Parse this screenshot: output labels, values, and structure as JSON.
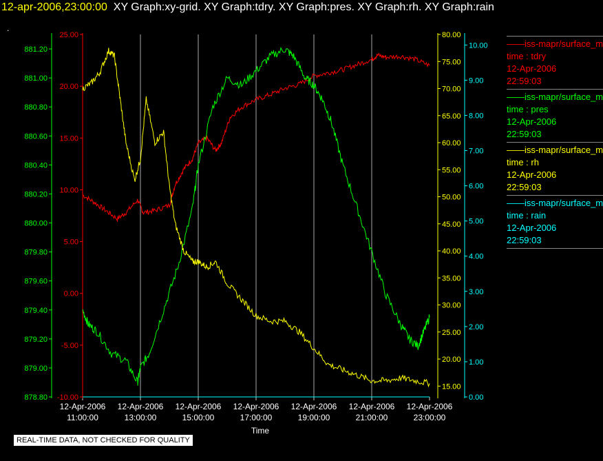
{
  "header": {
    "date": "12-apr-2006,23:00:00",
    "graphs": "XY Graph:xy-grid.  XY Graph:tdry.  XY Graph:pres.  XY Graph:rh.  XY Graph:rain"
  },
  "dot": ".",
  "note": "REAL-TIME DATA, NOT CHECKED FOR QUALITY",
  "legend": [
    {
      "name": "——iss-mapr/surface_m",
      "axes": "time : tdry",
      "date": "12-Apr-2006",
      "time": "22:59:03",
      "color": "#ff0000"
    },
    {
      "name": "——iss-mapr/surface_m",
      "axes": "time : pres",
      "date": "12-Apr-2006",
      "time": "22:59:03",
      "color": "#00ff00"
    },
    {
      "name": "——iss-mapr/surface_m",
      "axes": "time : rh",
      "date": "12-Apr-2006",
      "time": "22:59:03",
      "color": "#ffff00"
    },
    {
      "name": "——iss-mapr/surface_m",
      "axes": "time : rain",
      "date": "12-Apr-2006",
      "time": "22:59:03",
      "color": "#00ffff"
    }
  ],
  "chart_data": {
    "type": "line",
    "xlabel": "Time",
    "xlim": [
      11,
      23
    ],
    "x_ticks": [
      {
        "value": 11,
        "label1": "12-Apr-2006",
        "label2": "11:00:00"
      },
      {
        "value": 13,
        "label1": "12-Apr-2006",
        "label2": "13:00:00"
      },
      {
        "value": 15,
        "label1": "12-Apr-2006",
        "label2": "15:00:00"
      },
      {
        "value": 17,
        "label1": "12-Apr-2006",
        "label2": "17:00:00"
      },
      {
        "value": 19,
        "label1": "12-Apr-2006",
        "label2": "19:00:00"
      },
      {
        "value": 21,
        "label1": "12-Apr-2006",
        "label2": "21:00:00"
      },
      {
        "value": 23,
        "label1": "12-Apr-2006",
        "label2": "23:00:00"
      }
    ],
    "grid": "vertical",
    "axes": {
      "pres": {
        "color": "#00ff00",
        "side": "left-outer",
        "ylim": [
          878.8,
          881.3
        ],
        "ticks": [
          "878.80",
          "879.00",
          "879.20",
          "879.40",
          "879.60",
          "879.80",
          "880.00",
          "880.20",
          "880.40",
          "880.60",
          "880.80",
          "881.00",
          "881.20"
        ]
      },
      "tdry": {
        "color": "#ff0000",
        "side": "left-inner",
        "ylim": [
          -10,
          25
        ],
        "ticks": [
          "-10.00",
          "-5.00",
          "0.00",
          "5.00",
          "10.00",
          "15.00",
          "20.00",
          "25.00"
        ]
      },
      "rh": {
        "color": "#ffff00",
        "side": "right-inner",
        "ylim": [
          13,
          80
        ],
        "ticks": [
          "15.00",
          "20.00",
          "25.00",
          "30.00",
          "35.00",
          "40.00",
          "45.00",
          "50.00",
          "55.00",
          "60.00",
          "65.00",
          "70.00",
          "75.00",
          "80.00"
        ]
      },
      "rain": {
        "color": "#00ffff",
        "side": "right-outer",
        "ylim": [
          0,
          10.3
        ],
        "ticks": [
          "0.00",
          "1.00",
          "2.00",
          "3.00",
          "4.00",
          "5.00",
          "6.00",
          "7.00",
          "8.00",
          "9.00",
          "10.00"
        ]
      }
    },
    "series": [
      {
        "axis": "tdry",
        "color": "#ff0000",
        "x": [
          11.0,
          11.4,
          11.8,
          12.2,
          12.5,
          12.9,
          13.1,
          13.5,
          14.0,
          14.2,
          14.5,
          14.8,
          15.0,
          15.3,
          15.6,
          15.8,
          16.1,
          16.5,
          17.0,
          17.5,
          18.0,
          18.5,
          19.0,
          19.5,
          20.0,
          20.5,
          21.0,
          21.2,
          21.5,
          22.0,
          22.5,
          23.0
        ],
        "y": [
          9.5,
          8.8,
          8.0,
          7.2,
          7.8,
          9.0,
          7.8,
          8.0,
          8.5,
          10.5,
          12.0,
          13.0,
          14.5,
          15.0,
          13.8,
          14.5,
          17.0,
          18.0,
          18.7,
          19.2,
          19.8,
          20.2,
          21.0,
          21.3,
          21.6,
          22.1,
          22.6,
          23.0,
          22.8,
          22.9,
          22.6,
          22.0
        ]
      },
      {
        "axis": "pres",
        "color": "#00ff00",
        "x": [
          11.0,
          11.2,
          11.5,
          12.0,
          12.5,
          12.9,
          13.0,
          13.3,
          13.8,
          14.3,
          14.8,
          15.0,
          15.5,
          16.0,
          16.5,
          17.0,
          17.5,
          18.0,
          18.3,
          18.7,
          19.0,
          19.3,
          19.6,
          20.0,
          20.5,
          21.0,
          21.5,
          22.0,
          22.3,
          22.6,
          22.8,
          23.0
        ],
        "y": [
          879.4,
          879.3,
          879.25,
          879.1,
          879.05,
          878.9,
          879.0,
          879.1,
          879.4,
          879.7,
          880.1,
          880.4,
          880.8,
          881.0,
          880.95,
          881.05,
          881.15,
          881.2,
          881.15,
          881.0,
          880.95,
          880.85,
          880.7,
          880.4,
          880.1,
          879.8,
          879.5,
          879.3,
          879.2,
          879.15,
          879.25,
          879.35
        ]
      },
      {
        "axis": "rh",
        "color": "#ffff00",
        "x": [
          11.0,
          11.3,
          11.6,
          11.9,
          12.1,
          12.3,
          12.5,
          12.8,
          13.0,
          13.2,
          13.5,
          13.8,
          14.0,
          14.2,
          14.5,
          14.8,
          15.0,
          15.3,
          15.6,
          16.0,
          16.5,
          17.0,
          17.5,
          18.0,
          18.5,
          19.0,
          19.5,
          20.0,
          20.5,
          21.0,
          21.5,
          22.0,
          22.5,
          23.0
        ],
        "y": [
          70,
          71,
          73,
          77,
          76,
          68,
          60,
          53,
          57,
          68,
          60,
          62,
          52,
          45,
          40,
          38,
          38,
          37,
          38,
          34,
          31,
          28,
          27,
          27,
          25,
          22,
          19,
          18,
          17,
          16,
          16,
          16.5,
          16,
          15.5
        ]
      },
      {
        "axis": "rain",
        "color": "#00ffff",
        "x": [
          11.0,
          23.0
        ],
        "y": [
          0.0,
          0.0
        ]
      }
    ]
  }
}
